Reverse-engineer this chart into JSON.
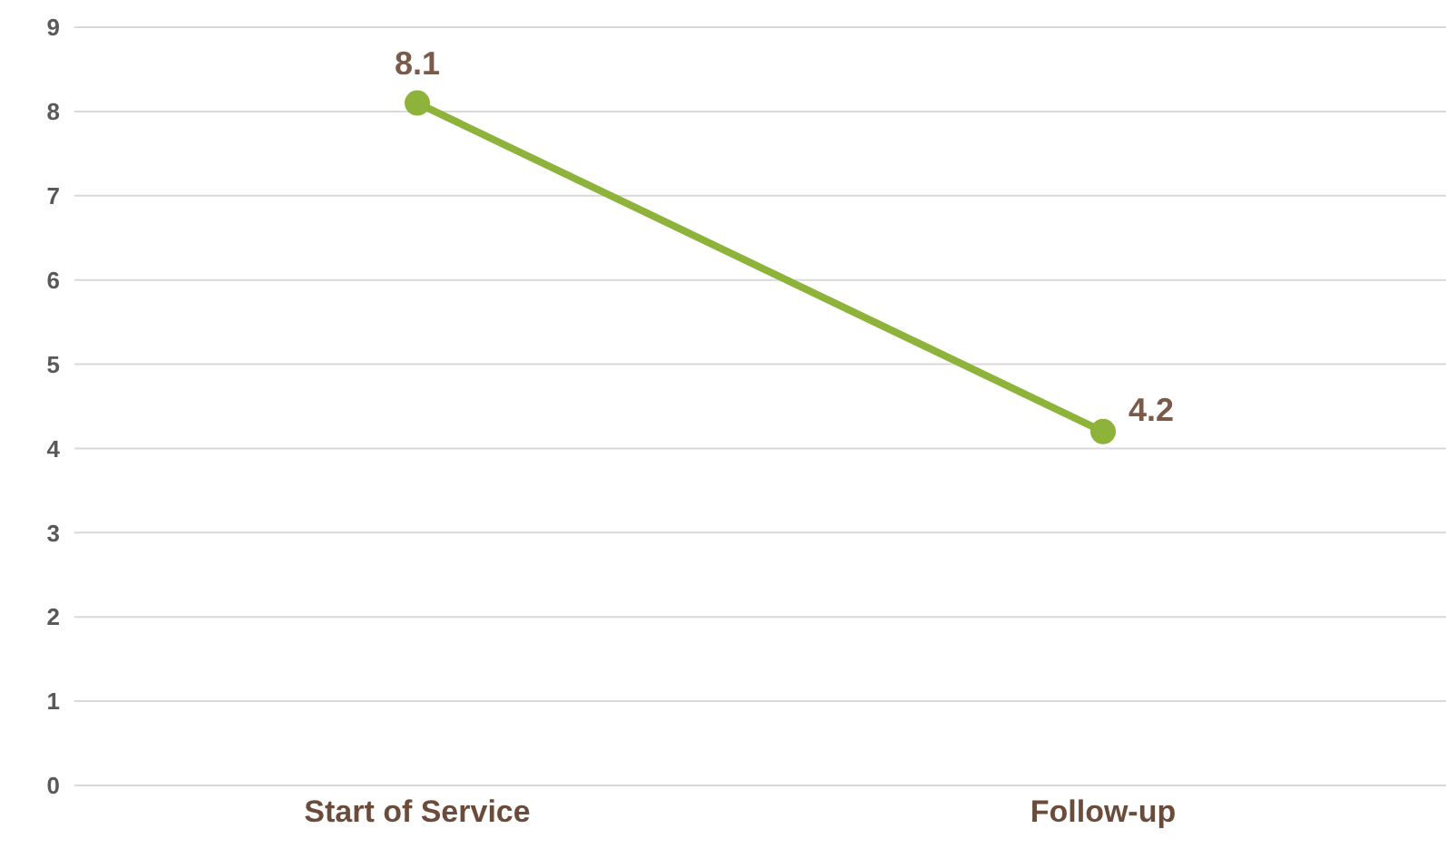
{
  "chart_data": {
    "type": "line",
    "categories": [
      "Start of Service",
      "Follow-up"
    ],
    "series": [
      {
        "color": "#8db33a",
        "values": [
          8.1,
          4.2
        ]
      }
    ],
    "ylim": [
      0,
      9
    ],
    "yticks": [
      0,
      1,
      2,
      3,
      4,
      5,
      6,
      7,
      8,
      9
    ],
    "grid": "y",
    "legend": false,
    "marker": "circle",
    "line_style": "solid",
    "data_labels": true
  }
}
